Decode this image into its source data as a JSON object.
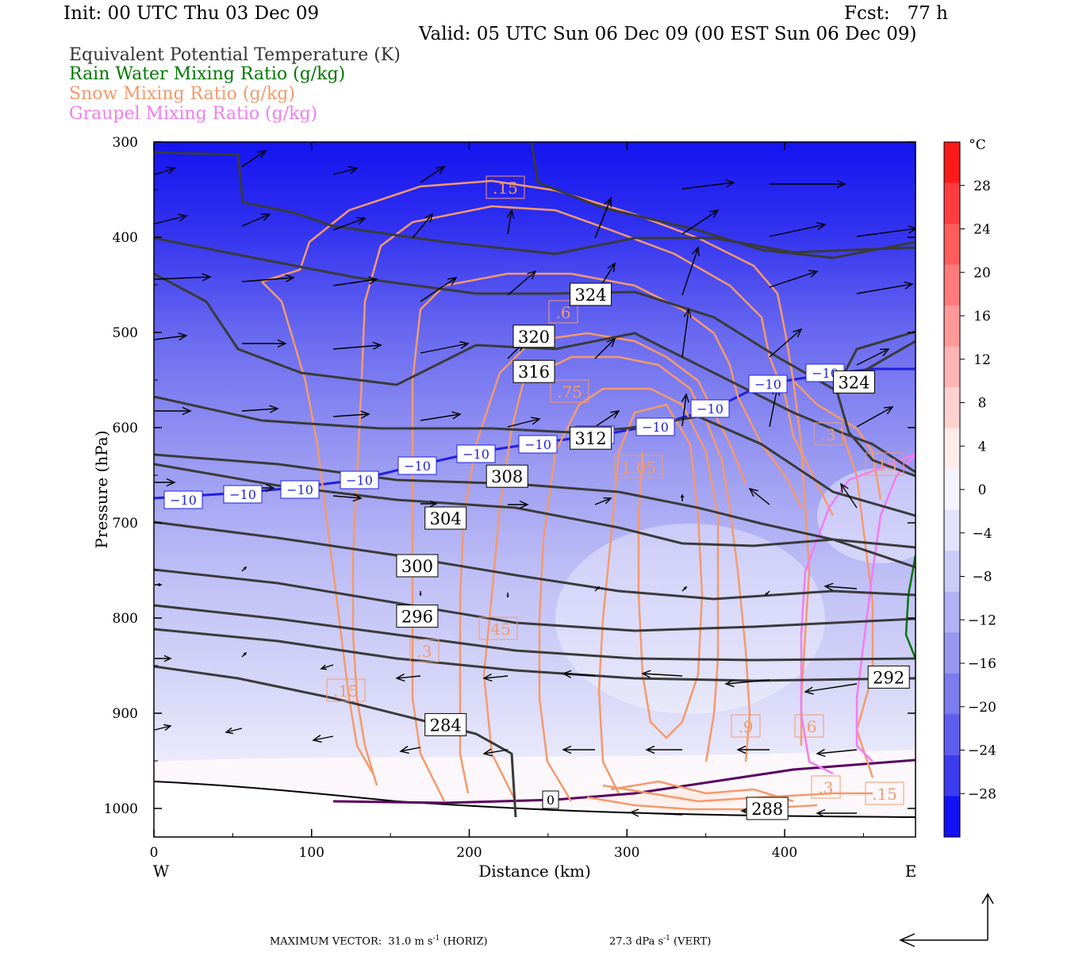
{
  "header": {
    "init": "Init: 00 UTC Thu 03 Dec 09",
    "fcst": "Fcst:   77 h",
    "valid": "Valid: 05 UTC Sun 06 Dec 09 (00 EST Sun 06 Dec 09)"
  },
  "legend": [
    {
      "label": "Equivalent Potential Temperature (K)",
      "color": "#333333"
    },
    {
      "label": "Rain Water Mixing Ratio (g/kg)",
      "color": "#007800"
    },
    {
      "label": "Snow Mixing Ratio (g/kg)",
      "color": "#f49a6b"
    },
    {
      "label": "Graupel Mixing Ratio (g/kg)",
      "color": "#f27cf2"
    }
  ],
  "footer": {
    "max_vector": "MAXIMUM VECTOR:  31.0 m s",
    "horiz": " (HORIZ)",
    "vert_value": "27.3 dPa s",
    "vert": " (VERT)",
    "exp": "-1"
  },
  "chart_data": {
    "type": "contour",
    "xlabel": "Distance (km)",
    "ylabel": "Pressure (hPa)",
    "xlim": [
      0,
      483
    ],
    "ylim": [
      1030,
      300
    ],
    "x_ticks": [
      "0",
      "100",
      "200",
      "300",
      "400"
    ],
    "x_tick_values": [
      0,
      100,
      200,
      300,
      400
    ],
    "y_ticks": [
      "300",
      "400",
      "500",
      "600",
      "700",
      "800",
      "900",
      "1000"
    ],
    "y_tick_values": [
      300,
      400,
      500,
      600,
      700,
      800,
      900,
      1000
    ],
    "direction_labels": {
      "west": "W",
      "east": "E"
    },
    "colorbar": {
      "unit": "°C",
      "labels": [
        "28",
        "24",
        "20",
        "16",
        "12",
        "8",
        "4",
        "0",
        "-4",
        "-8",
        "-12",
        "-16",
        "-20",
        "-24",
        "-28"
      ],
      "colors": [
        "#ff1a1a",
        "#ff3d3d",
        "#ff5c5c",
        "#ff7a7a",
        "#ff9898",
        "#ffb4b4",
        "#ffd0d0",
        "#ffeaea",
        "#f4f4ff",
        "#e2e2fb",
        "#cbcbf7",
        "#b1b1f4",
        "#9898f1",
        "#7c7cee",
        "#5e5eee",
        "#3c3cf0",
        "#1212f4"
      ],
      "top_value": 32,
      "bottom_value": -32
    },
    "theta_e_contours": [
      {
        "value": "284",
        "label_at": [
          185,
          912
        ]
      },
      {
        "value": "288",
        "label_at": [
          389,
          1000
        ]
      },
      {
        "value": "292",
        "label_at": [
          466,
          862
        ]
      },
      {
        "value": "296",
        "label_at": [
          167,
          798
        ]
      },
      {
        "value": "300",
        "label_at": [
          167,
          745
        ]
      },
      {
        "value": "304",
        "label_at": [
          185,
          695
        ]
      },
      {
        "value": "308",
        "label_at": [
          224,
          651
        ]
      },
      {
        "value": "312",
        "label_at": [
          277,
          611
        ]
      },
      {
        "value": "316",
        "label_at": [
          241,
          541
        ]
      },
      {
        "value": "320",
        "label_at": [
          241,
          504
        ]
      },
      {
        "value": "324",
        "label_at": [
          277,
          460
        ]
      },
      {
        "value": "324",
        "label_at": [
          444,
          552
        ]
      }
    ],
    "isotherm_minus10_labels": [
      "-10",
      "-10",
      "-10",
      "-10",
      "-10",
      "-10",
      "-10",
      "-10",
      "-10",
      "-10",
      "-10",
      "-10"
    ],
    "snow_labels": [
      ".15",
      ".6",
      ".75",
      "1.05",
      ".45",
      ".3",
      ".15",
      ".9",
      ".6",
      ".3",
      ".15",
      ".3",
      ".15"
    ],
    "rain_water_label": "0"
  }
}
